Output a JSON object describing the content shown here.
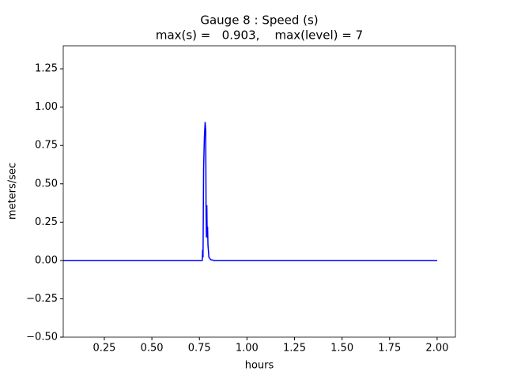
{
  "chart_data": {
    "type": "line",
    "title": "Gauge 8 : Speed (s)",
    "subtitle": "max(s) =   0.903,    max(level) = 7",
    "x_label": "hours",
    "y_label": "meters/sec",
    "x": [
      0.034,
      0.75,
      0.765,
      0.767,
      0.769,
      0.772,
      0.776,
      0.78,
      0.783,
      0.785,
      0.787,
      0.789,
      0.791,
      0.793,
      0.795,
      0.8,
      0.81,
      0.83,
      2.0
    ],
    "series": [
      {
        "color": "#0000ff",
        "values": [
          0,
          0,
          0,
          0.07,
          0.02,
          0.6,
          0.8,
          0.903,
          0.85,
          0.3,
          0.15,
          0.36,
          0.15,
          0.22,
          0.1,
          0.02,
          0.005,
          0,
          0
        ]
      }
    ],
    "xlim": [
      0.034,
      2.096
    ],
    "ylim": [
      -0.5,
      1.4
    ],
    "xticks": [
      0.25,
      {
        "value": 0.5,
        "label": "0.50"
      },
      0.75,
      {
        "value": 1,
        "label": "1.00"
      },
      1.25,
      {
        "value": 1.5,
        "label": "1.50"
      },
      1.75,
      {
        "value": 2,
        "label": "2.00"
      }
    ],
    "yticks": [
      {
        "value": -0.5,
        "label": "−0.50"
      },
      {
        "value": -0.25,
        "label": "−0.25"
      },
      {
        "value": 0,
        "label": "0.00"
      },
      0.25,
      {
        "value": 0.5,
        "label": "0.50"
      },
      0.75,
      {
        "value": 1,
        "label": "1.00"
      },
      1.25
    ],
    "grid": false
  }
}
